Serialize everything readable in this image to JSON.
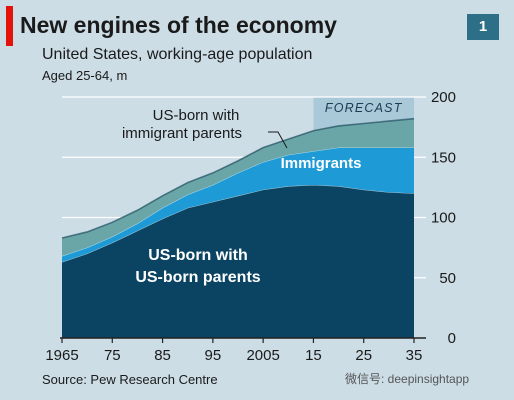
{
  "header": {
    "title": "New engines of the economy",
    "subtitle": "United States, working-age population",
    "unit": "Aged 25-64, m",
    "badge": "1"
  },
  "footer": {
    "source": "Source: Pew Research Centre",
    "watermark": "微信号: deepinsightapp"
  },
  "colors": {
    "background": "#ccdde6",
    "us_born_us_parents": "#0b4462",
    "immigrants": "#1e9bd7",
    "us_born_immigrant_parents": "#6aa6a8",
    "forecast_band": "#a9c9d9"
  },
  "chart_data": {
    "type": "area",
    "stacked": true,
    "x": [
      1965,
      1970,
      1975,
      1980,
      1985,
      1990,
      1995,
      2000,
      2005,
      2010,
      2015,
      2020,
      2025,
      2030,
      2035
    ],
    "xticks": [
      "1965",
      "75",
      "85",
      "95",
      "2005",
      "15",
      "25",
      "35"
    ],
    "xtick_values": [
      1965,
      1975,
      1985,
      1995,
      2005,
      2015,
      2025,
      2035
    ],
    "yticks": [
      "0",
      "50",
      "100",
      "150",
      "200"
    ],
    "ytick_values": [
      0,
      50,
      100,
      150,
      200
    ],
    "ylim": [
      0,
      200
    ],
    "xlim": [
      1965,
      2035
    ],
    "y_axis_side": "right",
    "grid": true,
    "forecast_start": 2015,
    "forecast_label": "FORECAST",
    "series": [
      {
        "name": "US-born with\nUS-born parents",
        "label_lines": [
          "US-born with",
          "US-born parents"
        ],
        "values": [
          63,
          70,
          79,
          89,
          99,
          108,
          113,
          118,
          123,
          126,
          127,
          126,
          123,
          121,
          120
        ]
      },
      {
        "name": "Immigrants",
        "label_lines": [
          "Immigrants"
        ],
        "values": [
          5,
          5,
          5,
          6,
          9,
          11,
          14,
          19,
          23,
          26,
          28,
          32,
          35,
          37,
          38
        ]
      },
      {
        "name": "US-born with immigrant parents",
        "label_lines": [
          "US-born with",
          "immigrant parents"
        ],
        "values": [
          15,
          13,
          12,
          11,
          10,
          10,
          10,
          10,
          12,
          13,
          17,
          18,
          20,
          22,
          24
        ]
      }
    ]
  }
}
